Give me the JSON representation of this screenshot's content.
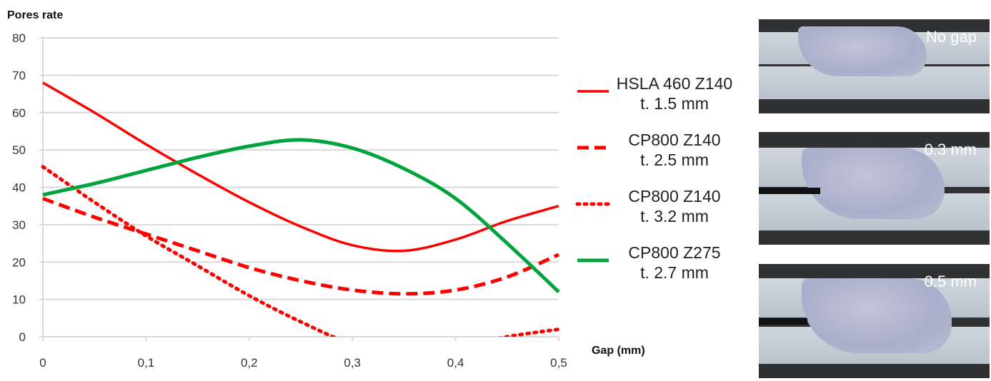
{
  "chart_data": {
    "type": "line",
    "ylabel": "Pores rate",
    "xlabel": "Gap (mm)",
    "xlim": [
      0,
      0.5
    ],
    "ylim": [
      0,
      80
    ],
    "x_ticks": [
      "0",
      "0,1",
      "0,2",
      "0,3",
      "0,4",
      "0,5"
    ],
    "y_ticks": [
      "0",
      "10",
      "20",
      "30",
      "40",
      "50",
      "60",
      "70",
      "80"
    ],
    "grid": true,
    "legend_position": "right",
    "x": [
      0,
      0.05,
      0.1,
      0.15,
      0.2,
      0.25,
      0.3,
      0.35,
      0.4,
      0.45,
      0.5
    ],
    "series": [
      {
        "name_line1": "HSLA 460 Z140",
        "name_line2": "t. 1.5 mm",
        "style": "solid",
        "color": "#ff0000",
        "values": [
          68,
          60,
          51.5,
          43.5,
          36,
          29.5,
          24.5,
          23,
          26,
          31,
          35
        ]
      },
      {
        "name_line1": "CP800 Z140",
        "name_line2": "t. 2.5 mm",
        "style": "dashed",
        "color": "#ff0000",
        "values": [
          37,
          32,
          27.5,
          23,
          18.5,
          15,
          12.5,
          11.5,
          12.5,
          16,
          22
        ]
      },
      {
        "name_line1": "CP800 Z140",
        "name_line2": "t. 3.2 mm",
        "style": "dotted",
        "color": "#ff0000",
        "values": [
          45.5,
          36,
          27,
          19,
          11,
          4,
          -2,
          -5,
          -3,
          0,
          2
        ]
      },
      {
        "name_line1": "CP800 Z275",
        "name_line2": "t. 2.7 mm",
        "style": "solid",
        "color": "#00a33c",
        "values": [
          38,
          41,
          44.5,
          48,
          51,
          52.7,
          50.5,
          45,
          37,
          25,
          12
        ]
      }
    ]
  },
  "photos": [
    {
      "label": "No gap"
    },
    {
      "label": "0.3 mm"
    },
    {
      "label": "0.5 mm"
    }
  ]
}
